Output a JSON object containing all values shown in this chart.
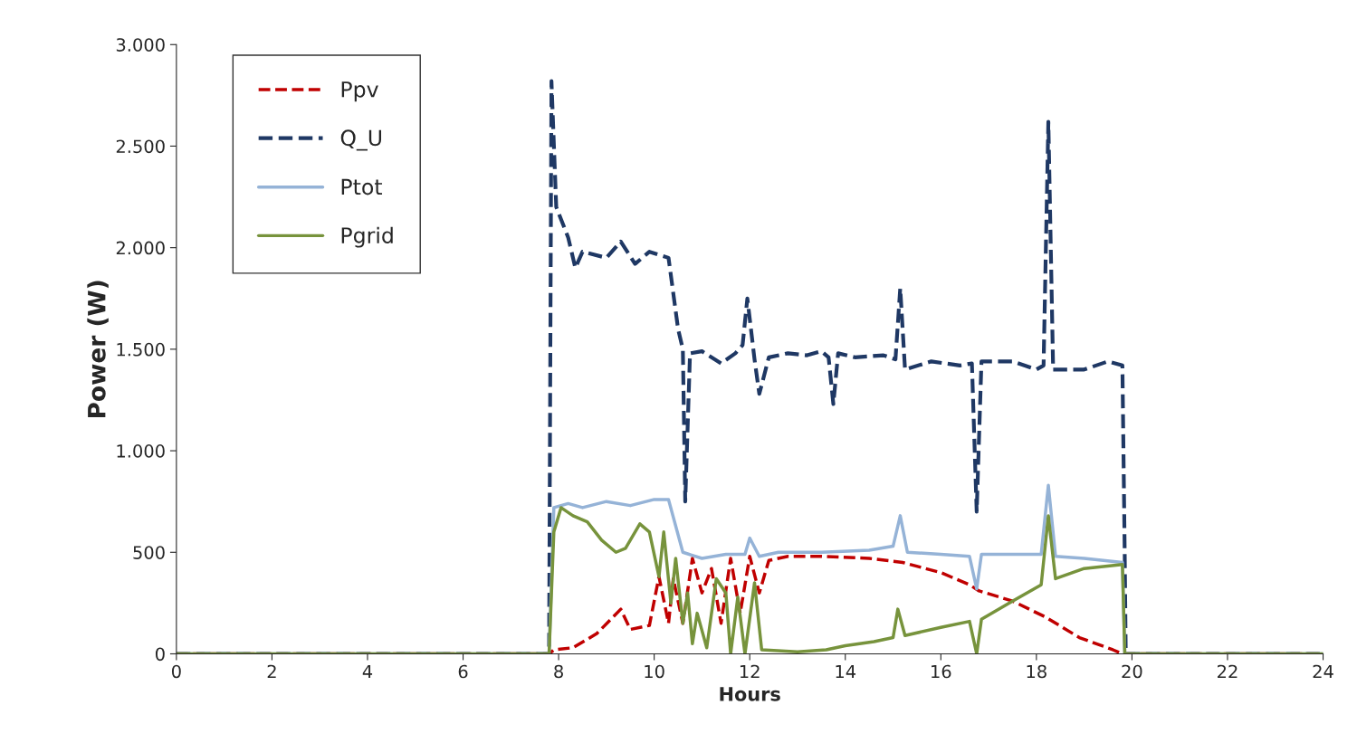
{
  "chart_data": {
    "type": "line",
    "xlabel": "Hours",
    "ylabel": "Power (W)",
    "xlim": [
      0,
      24
    ],
    "xticks": [
      0,
      2,
      4,
      6,
      8,
      10,
      12,
      14,
      16,
      18,
      20,
      22,
      24
    ],
    "ylim": [
      0,
      3000
    ],
    "yticks": [
      0,
      500,
      {
        "value": 1000,
        "label": "1.000"
      },
      {
        "value": 1500,
        "label": "1.500"
      },
      {
        "value": 2000,
        "label": "2.000"
      },
      {
        "value": 2500,
        "label": "2.500"
      },
      {
        "value": 3000,
        "label": "3.000"
      }
    ],
    "grid": false,
    "legend": "top left",
    "marker": "none",
    "series": [
      {
        "name": "Ppv",
        "color": "#c00000",
        "line_style": "dashed",
        "x": [
          0,
          7.8,
          7.9,
          8.3,
          8.8,
          9.3,
          9.5,
          9.9,
          10.1,
          10.3,
          10.4,
          10.6,
          10.8,
          11.0,
          11.2,
          11.4,
          11.6,
          11.8,
          12.0,
          12.2,
          12.4,
          12.8,
          13.5,
          14.5,
          15.2,
          16.0,
          16.6,
          16.8,
          17.5,
          18.2,
          18.9,
          19.6,
          19.8,
          24
        ],
        "values": [
          0,
          0,
          20,
          30,
          100,
          220,
          120,
          140,
          380,
          150,
          370,
          150,
          470,
          300,
          420,
          150,
          470,
          200,
          480,
          300,
          460,
          480,
          480,
          470,
          450,
          400,
          340,
          310,
          260,
          180,
          80,
          20,
          0,
          0
        ]
      },
      {
        "name": "Q_U",
        "color": "#1f3864",
        "line_style": "dashed",
        "x": [
          0,
          7.8,
          7.85,
          7.95,
          8.2,
          8.35,
          8.5,
          9.0,
          9.3,
          9.6,
          9.9,
          10.3,
          10.5,
          10.6,
          10.65,
          10.75,
          11.0,
          11.4,
          11.7,
          11.85,
          11.95,
          12.1,
          12.2,
          12.4,
          12.8,
          13.2,
          13.5,
          13.65,
          13.75,
          13.85,
          14.2,
          14.8,
          15.05,
          15.15,
          15.25,
          15.8,
          16.4,
          16.65,
          16.75,
          16.85,
          17.5,
          18.0,
          18.15,
          18.25,
          18.35,
          19.0,
          19.5,
          19.8,
          19.85,
          19.87,
          24
        ],
        "values": [
          0,
          0,
          2820,
          2200,
          2050,
          1900,
          1980,
          1950,
          2030,
          1920,
          1980,
          1950,
          1600,
          1500,
          750,
          1480,
          1490,
          1430,
          1480,
          1520,
          1750,
          1450,
          1280,
          1460,
          1480,
          1470,
          1490,
          1460,
          1230,
          1480,
          1460,
          1470,
          1450,
          1800,
          1400,
          1440,
          1420,
          1430,
          700,
          1440,
          1440,
          1400,
          1420,
          2620,
          1400,
          1400,
          1440,
          1420,
          460,
          0,
          0
        ]
      },
      {
        "name": "Ptot",
        "color": "#95b3d7",
        "line_style": "solid",
        "x": [
          0,
          7.8,
          7.9,
          8.2,
          8.5,
          9.0,
          9.5,
          10.0,
          10.3,
          10.6,
          11.0,
          11.5,
          11.9,
          12.0,
          12.2,
          12.6,
          13.5,
          14.5,
          15.0,
          15.15,
          15.3,
          16.0,
          16.6,
          16.75,
          16.85,
          17.5,
          18.1,
          18.25,
          18.4,
          19.0,
          19.8,
          19.85,
          24
        ],
        "values": [
          0,
          0,
          720,
          740,
          720,
          750,
          730,
          760,
          760,
          500,
          470,
          490,
          490,
          570,
          480,
          500,
          500,
          510,
          530,
          680,
          500,
          490,
          480,
          320,
          490,
          490,
          490,
          830,
          480,
          470,
          450,
          0,
          0
        ]
      },
      {
        "name": "Pgrid",
        "color": "#77933c",
        "line_style": "solid",
        "x": [
          0,
          7.8,
          7.9,
          8.05,
          8.3,
          8.6,
          8.9,
          9.2,
          9.4,
          9.7,
          9.9,
          10.1,
          10.2,
          10.35,
          10.45,
          10.6,
          10.7,
          10.8,
          10.9,
          11.1,
          11.3,
          11.5,
          11.6,
          11.75,
          11.9,
          12.1,
          12.25,
          13.0,
          13.6,
          14.0,
          14.6,
          15.0,
          15.1,
          15.25,
          16.0,
          16.6,
          16.75,
          16.85,
          17.5,
          18.1,
          18.25,
          18.4,
          19.0,
          19.8,
          19.85,
          24
        ],
        "values": [
          0,
          0,
          600,
          720,
          680,
          650,
          560,
          500,
          520,
          640,
          600,
          380,
          600,
          250,
          470,
          150,
          300,
          50,
          200,
          30,
          370,
          300,
          0,
          280,
          0,
          350,
          20,
          10,
          20,
          40,
          60,
          80,
          220,
          90,
          130,
          160,
          0,
          170,
          260,
          340,
          680,
          370,
          420,
          440,
          0,
          0
        ]
      }
    ]
  }
}
